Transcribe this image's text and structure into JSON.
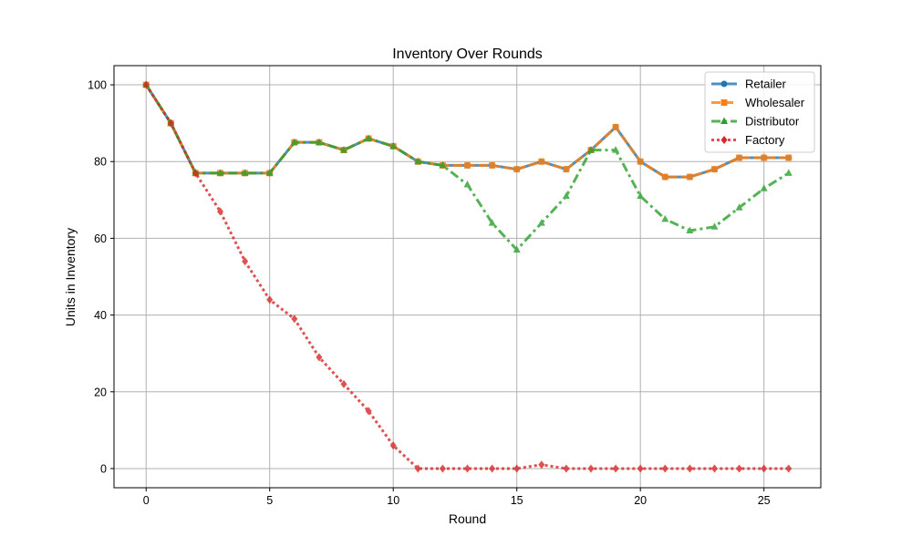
{
  "chart_data": {
    "type": "line",
    "title": "Inventory Over Rounds",
    "xlabel": "Round",
    "ylabel": "Units in Inventory",
    "xlim": [
      -1.3,
      27.3
    ],
    "ylim": [
      -5,
      105
    ],
    "xticks": [
      0,
      5,
      10,
      15,
      20,
      25
    ],
    "yticks": [
      0,
      20,
      40,
      60,
      80,
      100
    ],
    "grid": true,
    "legend_position": "top-right",
    "x": [
      0,
      1,
      2,
      3,
      4,
      5,
      6,
      7,
      8,
      9,
      10,
      11,
      12,
      13,
      14,
      15,
      16,
      17,
      18,
      19,
      20,
      21,
      22,
      23,
      24,
      25,
      26
    ],
    "series": [
      {
        "name": "Retailer",
        "color": "#1f77b4",
        "marker": "circle",
        "linestyle": "solid",
        "values": [
          100,
          90,
          77,
          77,
          77,
          77,
          85,
          85,
          83,
          86,
          84,
          80,
          79,
          79,
          79,
          78,
          80,
          78,
          83,
          89,
          80,
          76,
          76,
          78,
          81,
          81,
          81
        ]
      },
      {
        "name": "Wholesaler",
        "color": "#ff7f0e",
        "marker": "square",
        "linestyle": "dashed",
        "values": [
          100,
          90,
          77,
          77,
          77,
          77,
          85,
          85,
          83,
          86,
          84,
          80,
          79,
          79,
          79,
          78,
          80,
          78,
          83,
          89,
          80,
          76,
          76,
          78,
          81,
          81,
          81
        ]
      },
      {
        "name": "Distributor",
        "color": "#2ca02c",
        "marker": "triangle",
        "linestyle": "dashdot",
        "values": [
          100,
          90,
          77,
          77,
          77,
          77,
          85,
          85,
          83,
          86,
          84,
          80,
          79,
          74,
          64,
          57,
          64,
          71,
          83,
          83,
          71,
          65,
          62,
          63,
          68,
          73,
          77
        ]
      },
      {
        "name": "Factory",
        "color": "#d62728",
        "marker": "diamond",
        "linestyle": "dotted",
        "values": [
          100,
          90,
          77,
          67,
          54,
          44,
          39,
          29,
          22,
          15,
          6,
          0,
          0,
          0,
          0,
          0,
          1,
          0,
          0,
          0,
          0,
          0,
          0,
          0,
          0,
          0,
          0
        ]
      }
    ]
  }
}
